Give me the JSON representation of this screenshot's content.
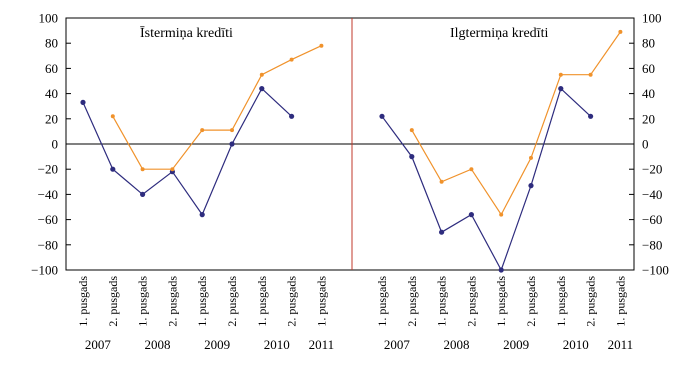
{
  "chart_data": [
    {
      "type": "line",
      "title": "Īstermiņa kredīti",
      "categories": [
        "1. pusgads",
        "2. pusgads",
        "1. pusgads",
        "2. pusgads",
        "1. pusgads",
        "2. pusgads",
        "1. pusgads",
        "2. pusgads",
        "1. pusgads"
      ],
      "years": [
        "2007",
        "2008",
        "2009",
        "2010",
        "2011"
      ],
      "ylim": [
        -100,
        100
      ],
      "yticks": [
        -100,
        -80,
        -60,
        -40,
        -20,
        0,
        20,
        40,
        60,
        80,
        100
      ],
      "grid": false,
      "series": [
        {
          "color": "#2e2c7e",
          "values": [
            33,
            -20,
            -40,
            -22,
            -56,
            0,
            44,
            22,
            null
          ]
        },
        {
          "color": "#f0922b",
          "values": [
            null,
            22,
            -20,
            -20,
            11,
            11,
            55,
            67,
            78
          ]
        }
      ]
    },
    {
      "type": "line",
      "title": "Ilgtermiņa kredīti",
      "categories": [
        "1. pusgads",
        "2. pusgads",
        "1. pusgads",
        "2. pusgads",
        "1. pusgads",
        "2. pusgads",
        "1. pusgads",
        "2. pusgads",
        "1. pusgads"
      ],
      "years": [
        "2007",
        "2008",
        "2009",
        "2010",
        "2011"
      ],
      "ylim": [
        -100,
        100
      ],
      "yticks": [
        -100,
        -80,
        -60,
        -40,
        -20,
        0,
        20,
        40,
        60,
        80,
        100
      ],
      "grid": false,
      "series": [
        {
          "color": "#2e2c7e",
          "values": [
            22,
            -10,
            -70,
            -56,
            -100,
            -33,
            44,
            22,
            null
          ]
        },
        {
          "color": "#f0922b",
          "values": [
            null,
            11,
            -30,
            -20,
            -56,
            -11,
            55,
            55,
            89
          ]
        }
      ]
    }
  ],
  "colors": {
    "divider": "#c0392b",
    "frame": "#000000",
    "zero_line": "#000000"
  }
}
